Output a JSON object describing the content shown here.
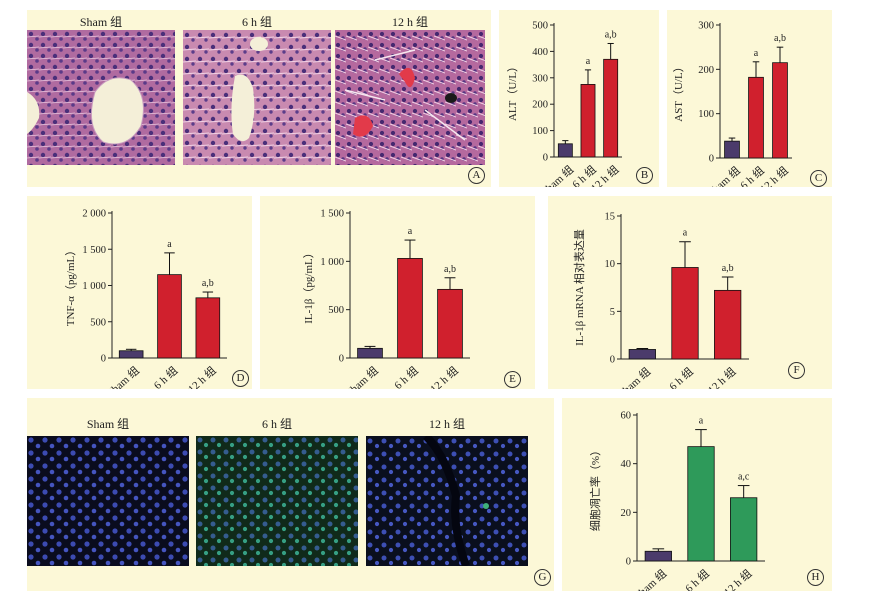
{
  "panels": {
    "A": {
      "letter": "A",
      "titles": [
        "Sham 组",
        "6 h 组",
        "12 h 组"
      ]
    },
    "G": {
      "letter": "G",
      "titles": [
        "Sham 组",
        "6 h 组",
        "12 h 组"
      ]
    }
  },
  "colors": {
    "panel_bg": "#fcf8d7",
    "sham": "#4b3b6b",
    "red": "#d0202d",
    "green": "#2e9a5a"
  },
  "chart_data": [
    {
      "id": "B",
      "letter": "B",
      "type": "bar",
      "ylabel": "ALT（U/L）",
      "categories": [
        "Sham 组",
        "6 h 组",
        "12 h 组"
      ],
      "values": [
        50,
        275,
        370
      ],
      "errors": [
        12,
        55,
        60
      ],
      "labels": [
        "",
        "a",
        "a,b"
      ],
      "ylim": [
        0,
        500
      ],
      "ticks": [
        "0",
        "100",
        "200",
        "300",
        "400",
        "500"
      ],
      "tickValues": [
        0,
        100,
        200,
        300,
        400,
        500
      ],
      "colors": [
        "#4b3b6b",
        "#d0202d",
        "#d0202d"
      ]
    },
    {
      "id": "C",
      "letter": "C",
      "type": "bar",
      "ylabel": "AST（U/L）",
      "categories": [
        "Sham 组",
        "6 h 组",
        "12 h 组"
      ],
      "values": [
        38,
        182,
        215
      ],
      "errors": [
        7,
        35,
        35
      ],
      "labels": [
        "",
        "a",
        "a,b"
      ],
      "ylim": [
        0,
        300
      ],
      "ticks": [
        "0",
        "100",
        "200",
        "300"
      ],
      "tickValues": [
        0,
        100,
        200,
        300
      ],
      "colors": [
        "#4b3b6b",
        "#d0202d",
        "#d0202d"
      ]
    },
    {
      "id": "D",
      "letter": "D",
      "type": "bar",
      "ylabel": "TNF-α（pg/mL）",
      "categories": [
        "Sham 组",
        "6 h 组",
        "12 h 组"
      ],
      "values": [
        100,
        1150,
        830
      ],
      "errors": [
        20,
        300,
        80
      ],
      "labels": [
        "",
        "a",
        "a,b"
      ],
      "ylim": [
        0,
        2000
      ],
      "ticks": [
        "0",
        "500",
        "1 000",
        "1 500",
        "2 000"
      ],
      "tickValues": [
        0,
        500,
        1000,
        1500,
        2000
      ],
      "colors": [
        "#4b3b6b",
        "#d0202d",
        "#d0202d"
      ]
    },
    {
      "id": "E",
      "letter": "E",
      "type": "bar",
      "ylabel": "IL-1β（pg/mL）",
      "categories": [
        "Sham 组",
        "6 h 组",
        "12 h 组"
      ],
      "values": [
        100,
        1030,
        710
      ],
      "errors": [
        20,
        190,
        120
      ],
      "labels": [
        "",
        "a",
        "a,b"
      ],
      "ylim": [
        0,
        1500
      ],
      "ticks": [
        "0",
        "500",
        "1 000",
        "1 500"
      ],
      "tickValues": [
        0,
        500,
        1000,
        1500
      ],
      "colors": [
        "#4b3b6b",
        "#d0202d",
        "#d0202d"
      ]
    },
    {
      "id": "F",
      "letter": "F",
      "type": "bar",
      "ylabel": "IL-1β mRNA 相对表达量",
      "categories": [
        "Sham 组",
        "6 h 组",
        "12 h 组"
      ],
      "values": [
        1,
        9.6,
        7.2
      ],
      "errors": [
        0.1,
        2.7,
        1.4
      ],
      "labels": [
        "",
        "a",
        "a,b"
      ],
      "ylim": [
        0,
        15
      ],
      "ticks": [
        "0",
        "5",
        "10",
        "15"
      ],
      "tickValues": [
        0,
        5,
        10,
        15
      ],
      "colors": [
        "#4b3b6b",
        "#d0202d",
        "#d0202d"
      ]
    },
    {
      "id": "H",
      "letter": "H",
      "type": "bar",
      "ylabel": "细胞凋亡率（%）",
      "categories": [
        "Sham 组",
        "6 h 组",
        "12 h 组"
      ],
      "values": [
        4,
        47,
        26
      ],
      "errors": [
        1,
        7,
        5
      ],
      "labels": [
        "",
        "a",
        "a,c"
      ],
      "ylim": [
        0,
        60
      ],
      "ticks": [
        "0",
        "20",
        "40",
        "60"
      ],
      "tickValues": [
        0,
        20,
        40,
        60
      ],
      "colors": [
        "#4b3b6b",
        "#2e9a5a",
        "#2e9a5a"
      ]
    }
  ]
}
